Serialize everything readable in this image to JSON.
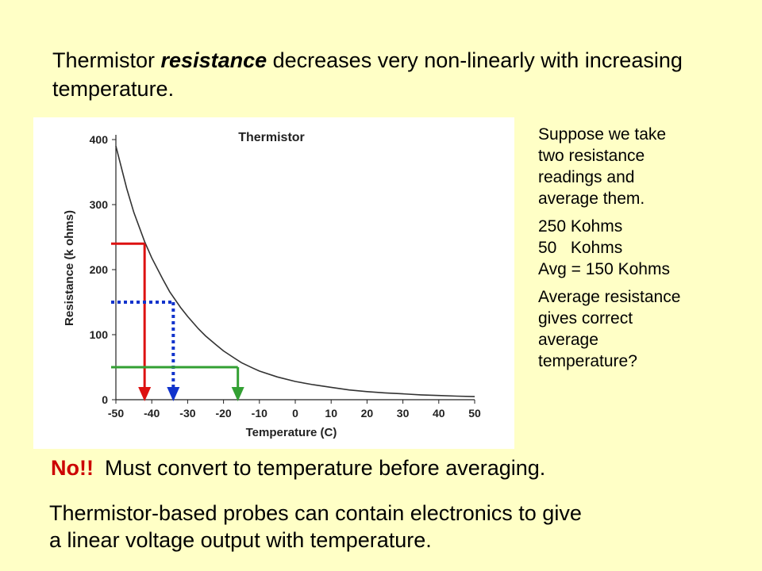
{
  "slide": {
    "title_pre": "Thermistor ",
    "title_em": "resistance",
    "title_post": " decreases very non-linearly with increasing temperature.",
    "side_intro_lines": [
      "Suppose we take",
      "two resistance",
      "readings and",
      "average them."
    ],
    "readings_lines": [
      "250 Kohms",
      "50   Kohms",
      "Avg = 150 Kohms"
    ],
    "question_lines": [
      "Average resistance",
      "gives correct",
      "average",
      "temperature?"
    ],
    "no_label": "No!!",
    "no_text": "Must convert to temperature before averaging.",
    "footer_lines": [
      "Thermistor-based probes can contain electronics to give",
      "a linear voltage output with temperature."
    ]
  },
  "chart_data": {
    "type": "line",
    "title": "Thermistor",
    "xlabel": "Temperature (C)",
    "ylabel": "Resistance (k ohms)",
    "xlim": [
      -50,
      50
    ],
    "ylim": [
      0,
      400
    ],
    "xticks": [
      -50,
      -40,
      -30,
      -20,
      -10,
      0,
      10,
      20,
      30,
      40,
      50
    ],
    "yticks": [
      0,
      100,
      200,
      300,
      400
    ],
    "grid": false,
    "series": [
      {
        "x": [
          -50,
          -47,
          -45,
          -42,
          -40,
          -37,
          -35,
          -32,
          -30,
          -27,
          -25,
          -22,
          -20,
          -17,
          -15,
          -12,
          -10,
          -5,
          0,
          5,
          10,
          15,
          20,
          25,
          30,
          35,
          40,
          45,
          50
        ],
        "y": [
          390,
          325,
          288,
          243,
          218,
          186,
          166,
          142,
          128,
          109,
          98,
          84,
          75,
          64,
          57,
          49,
          44,
          35,
          28,
          23,
          19,
          15,
          12.5,
          10.5,
          9,
          7.5,
          6.5,
          5.5,
          4.8
        ],
        "color": "#333333"
      }
    ],
    "annotations": [
      {
        "type": "reading-guide",
        "y": 240,
        "x": -42,
        "color": "#dd1111",
        "style": "solid"
      },
      {
        "type": "reading-guide",
        "y": 150,
        "x": -34,
        "color": "#1133cc",
        "style": "dashed"
      },
      {
        "type": "reading-guide",
        "y": 50,
        "x": -16,
        "color": "#33a033",
        "style": "solid"
      }
    ]
  }
}
